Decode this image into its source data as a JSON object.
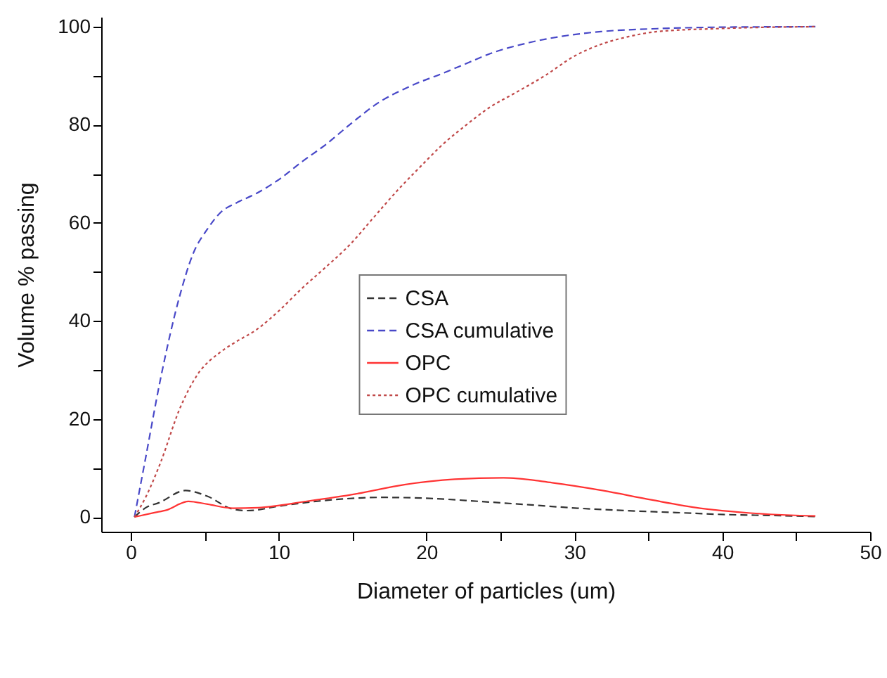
{
  "chart_data": {
    "type": "line",
    "xlabel": "Diameter of particles (um)",
    "ylabel": "Volume % passing",
    "xlim": [
      -2,
      50
    ],
    "xticks": [
      0,
      {
        "value": 5,
        "label": null
      },
      10,
      {
        "value": 15,
        "label": null
      },
      20,
      {
        "value": 25,
        "label": null
      },
      30,
      {
        "value": 35,
        "label": null
      },
      40,
      {
        "value": 45,
        "label": null
      },
      50
    ],
    "ylim": [
      -3,
      102
    ],
    "yticks": [
      0,
      {
        "value": 10,
        "label": null
      },
      20,
      {
        "value": 30,
        "label": null
      },
      40,
      {
        "value": 50,
        "label": null
      },
      60,
      {
        "value": 70,
        "label": null
      },
      80,
      {
        "value": 90,
        "label": null
      },
      100
    ],
    "grid": false,
    "legend": "right",
    "marker": "none",
    "series": [
      {
        "name": "CSA",
        "color": "#333333",
        "line_style": "dashed",
        "x": [
          0.25,
          1.07,
          1.9,
          3.7,
          5.2,
          6.9,
          7.9,
          10.2,
          13.6,
          16.9,
          20.2,
          23.5,
          26.9,
          30.2,
          33.5,
          36.9,
          40.2,
          43.5,
          46.3
        ],
        "values": [
          0,
          2.0,
          2.9,
          5.4,
          4.2,
          1.6,
          1.3,
          2.3,
          3.5,
          4.0,
          3.8,
          3.2,
          2.5,
          1.8,
          1.3,
          0.9,
          0.5,
          0.3,
          0.1
        ]
      },
      {
        "name": "CSA cumulative",
        "color": "#4848c8",
        "line_style": "dashed",
        "x": [
          0.25,
          1,
          2,
          3.3,
          4.2,
          5.2,
          6.1,
          7.1,
          8.5,
          10.1,
          11.6,
          13.2,
          15,
          16.7,
          19,
          21.1,
          22.7,
          24.3,
          27,
          29.5,
          31.8,
          35.6,
          40,
          46.3
        ],
        "values": [
          0,
          12,
          28,
          45,
          53.6,
          58.8,
          62.2,
          64,
          66,
          69,
          72.5,
          76,
          80.5,
          84.4,
          88,
          90.5,
          92.5,
          94.5,
          96.8,
          98.2,
          99,
          99.6,
          99.9,
          100
        ]
      },
      {
        "name": "OPC",
        "color": "#ff3333",
        "line_style": "solid",
        "x": [
          0.25,
          1.6,
          2.4,
          3.9,
          5.2,
          6.9,
          8.6,
          11.9,
          15.2,
          18.5,
          21.9,
          25.2,
          28.5,
          31.9,
          35.2,
          38.5,
          41.9,
          46.3
        ],
        "values": [
          0,
          0.9,
          1.4,
          3.2,
          2.6,
          1.8,
          1.9,
          3.2,
          4.7,
          6.6,
          7.7,
          8.0,
          7.0,
          5.4,
          3.5,
          1.8,
          0.8,
          0.2
        ]
      },
      {
        "name": "OPC cumulative",
        "color": "#c04848",
        "line_style": "dotted",
        "x": [
          0.25,
          1,
          2,
          3.3,
          4.5,
          6,
          7.1,
          8.5,
          10,
          11.6,
          13.2,
          14.8,
          16.4,
          18,
          19.6,
          21.1,
          22.7,
          24.3,
          26,
          28,
          30,
          31.8,
          33.7,
          35.6,
          39.6,
          46.3
        ],
        "values": [
          0,
          4,
          11,
          22,
          29,
          33.5,
          35.7,
          38.2,
          42,
          46.7,
          51,
          55.5,
          61,
          66.5,
          71.5,
          76,
          80,
          83.6,
          86.5,
          90,
          94,
          96.4,
          98,
          99,
          99.6,
          100
        ]
      }
    ]
  }
}
